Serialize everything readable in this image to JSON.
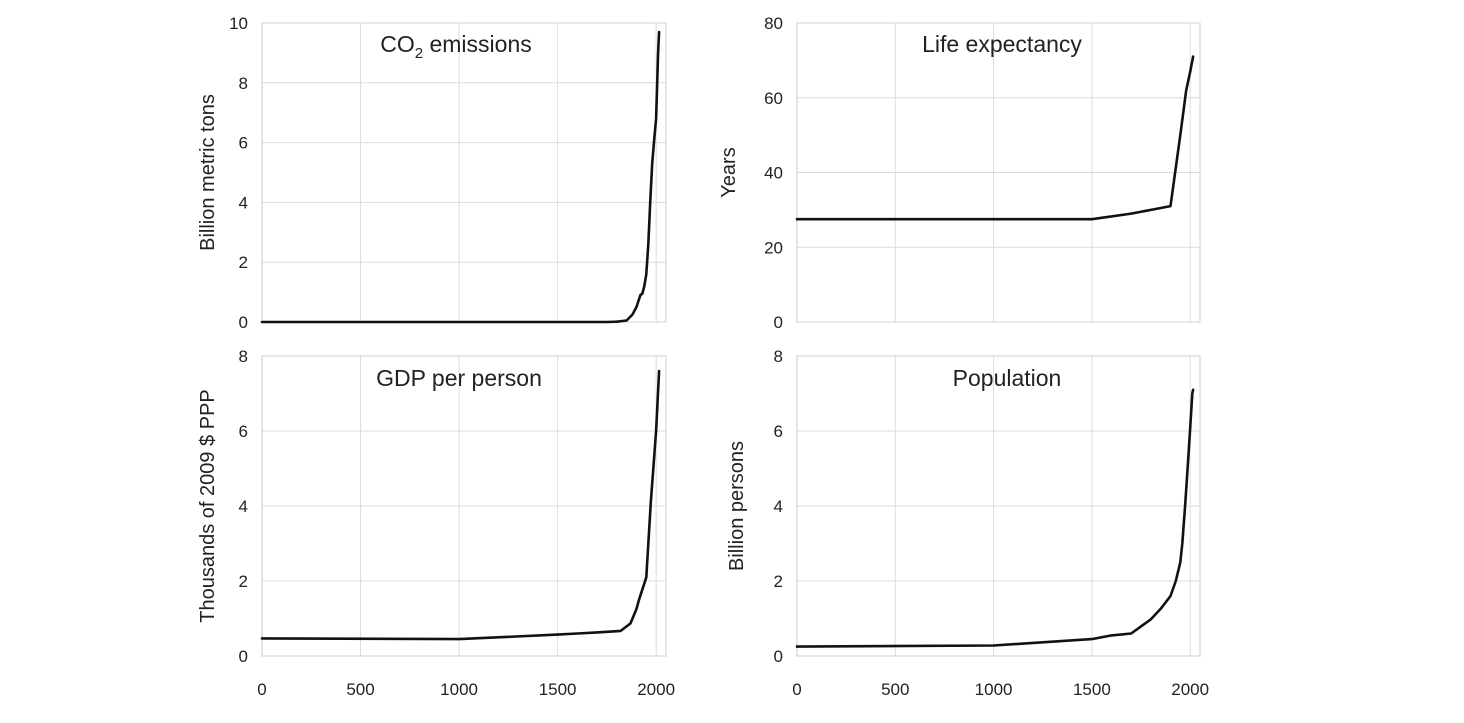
{
  "chart_data": [
    {
      "type": "line",
      "title": "CO₂ emissions",
      "title_parts": {
        "base": "CO",
        "sub": "2",
        "rest": " emissions"
      },
      "xlabel": "",
      "ylabel": "Billion metric tons",
      "xlim": [
        0,
        2050
      ],
      "ylim": [
        0,
        10
      ],
      "xticks": [
        0,
        500,
        1000,
        1500,
        2000
      ],
      "yticks": [
        0,
        2,
        4,
        6,
        8,
        10
      ],
      "grid": true,
      "show_xtick_labels": false,
      "x": [
        0,
        1750,
        1800,
        1850,
        1880,
        1900,
        1920,
        1930,
        1940,
        1950,
        1960,
        1970,
        1980,
        1990,
        2000,
        2010,
        2015
      ],
      "values": [
        0,
        0,
        0.01,
        0.05,
        0.25,
        0.5,
        0.9,
        0.95,
        1.2,
        1.6,
        2.6,
        4.0,
        5.3,
        6.1,
        6.8,
        9.0,
        9.7
      ]
    },
    {
      "type": "line",
      "title": "Life expectancy",
      "xlabel": "",
      "ylabel": "Years",
      "xlim": [
        0,
        2050
      ],
      "ylim": [
        0,
        80
      ],
      "xticks": [
        0,
        500,
        1000,
        1500,
        2000
      ],
      "yticks": [
        0,
        20,
        40,
        60,
        80
      ],
      "grid": true,
      "show_xtick_labels": false,
      "x": [
        0,
        1000,
        1500,
        1700,
        1800,
        1900,
        1950,
        1980,
        2000,
        2015
      ],
      "values": [
        27.5,
        27.5,
        27.5,
        29,
        30,
        31,
        50,
        62,
        67,
        71
      ]
    },
    {
      "type": "line",
      "title": "GDP per person",
      "xlabel": "",
      "ylabel": "Thousands of 2009 $ PPP",
      "xlim": [
        0,
        2050
      ],
      "ylim": [
        0,
        8
      ],
      "xticks": [
        0,
        500,
        1000,
        1500,
        2000
      ],
      "yticks": [
        0,
        2,
        4,
        6,
        8
      ],
      "grid": true,
      "show_xtick_labels": true,
      "x": [
        0,
        1000,
        1500,
        1600,
        1700,
        1820,
        1870,
        1900,
        1913,
        1950,
        1973,
        2000,
        2015
      ],
      "values": [
        0.47,
        0.45,
        0.57,
        0.6,
        0.63,
        0.67,
        0.87,
        1.25,
        1.5,
        2.1,
        4.1,
        6.0,
        7.6
      ]
    },
    {
      "type": "line",
      "title": "Population",
      "xlabel": "",
      "ylabel": "Billion persons",
      "xlim": [
        0,
        2050
      ],
      "ylim": [
        0,
        8
      ],
      "xticks": [
        0,
        500,
        1000,
        1500,
        2000
      ],
      "yticks": [
        0,
        2,
        4,
        6,
        8
      ],
      "grid": true,
      "show_xtick_labels": true,
      "x": [
        0,
        1000,
        1500,
        1600,
        1700,
        1800,
        1850,
        1900,
        1927,
        1950,
        1960,
        1974,
        1987,
        1999,
        2011,
        2015
      ],
      "values": [
        0.25,
        0.28,
        0.45,
        0.55,
        0.6,
        0.98,
        1.26,
        1.6,
        2.0,
        2.5,
        3.0,
        4.0,
        5.0,
        6.0,
        7.0,
        7.1
      ]
    }
  ]
}
